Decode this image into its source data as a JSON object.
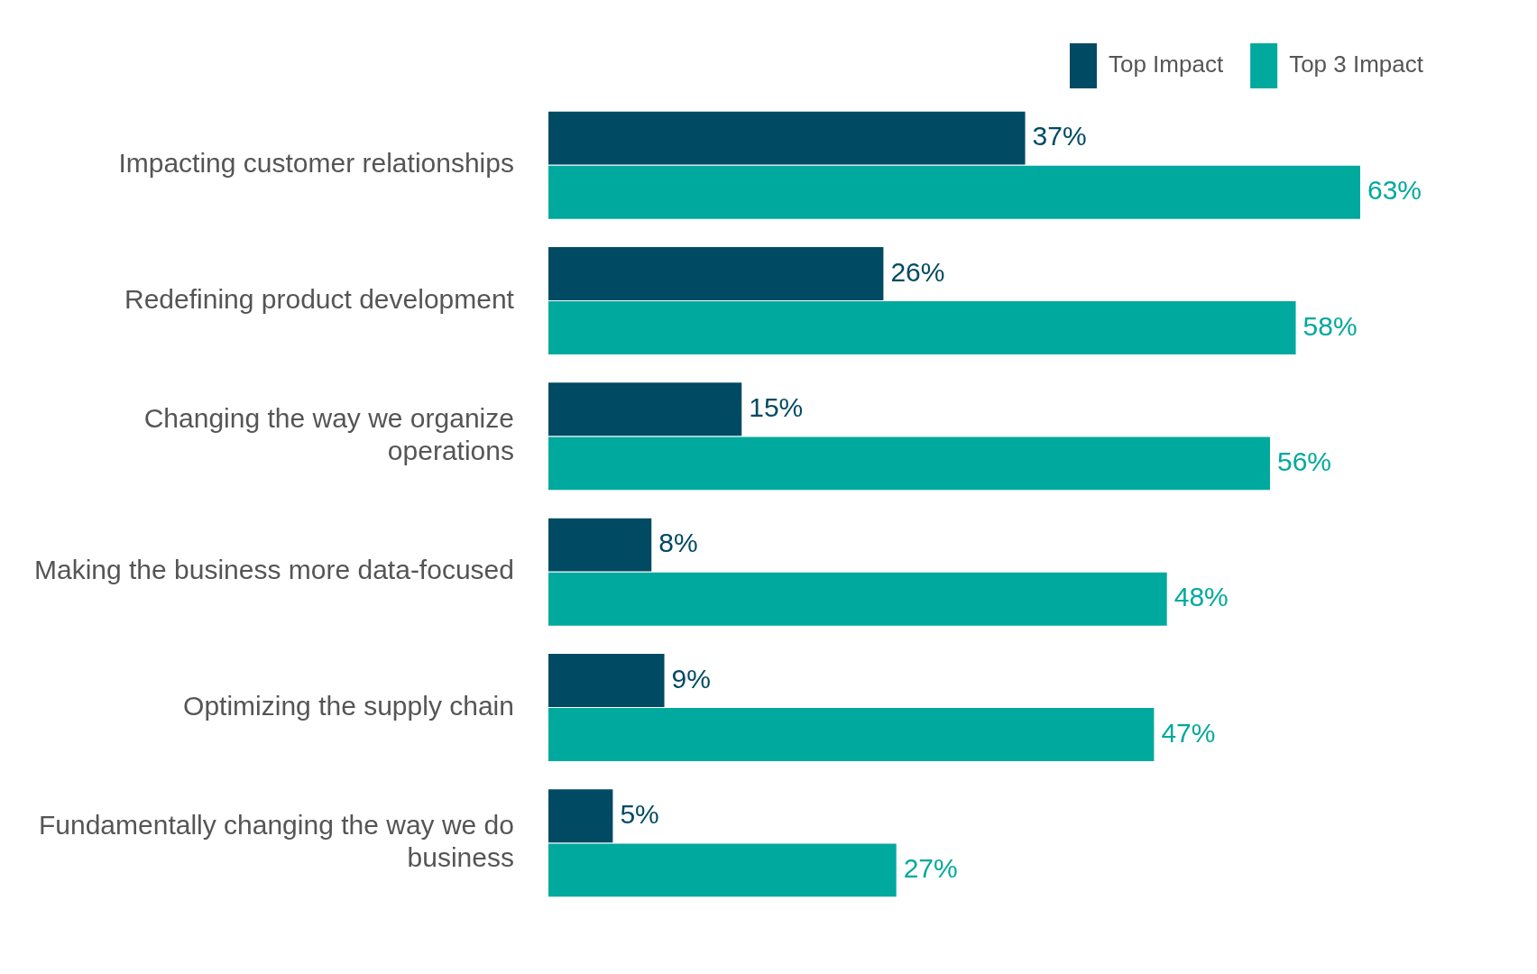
{
  "chart_data": {
    "type": "bar",
    "orientation": "horizontal",
    "categories": [
      "Impacting customer relationships",
      "Redefining product development",
      "Changing the way we organize operations",
      "Making the business more data-focused",
      "Optimizing the supply chain",
      "Fundamentally changing the way we do business"
    ],
    "series": [
      {
        "name": "Top Impact",
        "color": "#004a63",
        "values": [
          37,
          26,
          15,
          8,
          9,
          5
        ],
        "value_labels": [
          "37%",
          "26%",
          "15%",
          "8%",
          "9%",
          "5%"
        ]
      },
      {
        "name": "Top 3 Impact",
        "color": "#00a99d",
        "values": [
          63,
          58,
          56,
          48,
          47,
          27
        ],
        "value_labels": [
          "63%",
          "58%",
          "56%",
          "48%",
          "47%",
          "27%"
        ]
      }
    ],
    "legend": "top right",
    "grid": false
  }
}
